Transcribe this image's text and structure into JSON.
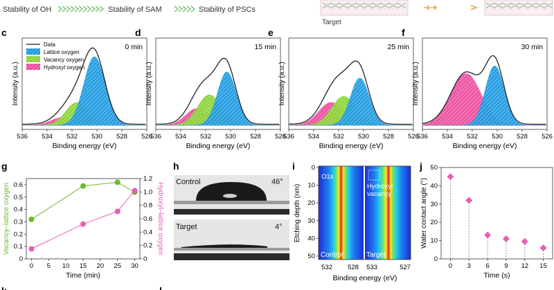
{
  "header": {
    "flow": [
      "Stability of OH",
      "Stability of SAM",
      "Stability of PSCs"
    ],
    "target_label": "Target"
  },
  "colors": {
    "lattice": "#1f9be0",
    "vacancy": "#8cd43a",
    "hydroxyl": "#ec4fa0",
    "data_line": "#222222",
    "background_line": "#e23a8a",
    "green_series": "#6cb82e",
    "pink_series": "#e85fb8",
    "flow_arrow": "#7cc57a",
    "target_arrow": "#f0a050"
  },
  "chart_data": [
    {
      "panel": "c",
      "type": "xps",
      "annotation": "0 min",
      "xlabel": "Binding energy (eV)",
      "ylabel": "Intensity (a.u.)",
      "xlim": [
        536,
        526
      ],
      "xticks": [
        536,
        534,
        532,
        530,
        528,
        526
      ],
      "legend": [
        "Data",
        "Lattice oxygen",
        "Vacancy oxygen",
        "Hydroxyl oxygen"
      ],
      "peaks": {
        "lattice": {
          "center": 530.2,
          "width": 0.85,
          "height": 0.9
        },
        "vacancy": {
          "center": 531.6,
          "width": 0.9,
          "height": 0.3
        },
        "hydroxyl": {
          "center": 532.8,
          "width": 0.9,
          "height": 0.1
        }
      }
    },
    {
      "panel": "d",
      "type": "xps",
      "annotation": "15 min",
      "xlabel": "Binding energy (eV)",
      "ylabel": "Intensity (a.u.)",
      "xlim": [
        536,
        526
      ],
      "xticks": [
        536,
        534,
        532,
        530,
        528,
        526
      ],
      "peaks": {
        "lattice": {
          "center": 530.3,
          "width": 0.75,
          "height": 0.7
        },
        "vacancy": {
          "center": 531.7,
          "width": 0.95,
          "height": 0.4
        },
        "hydroxyl": {
          "center": 532.7,
          "width": 0.9,
          "height": 0.22
        }
      }
    },
    {
      "panel": "e",
      "type": "xps",
      "annotation": "25 min",
      "xlabel": "Binding energy (eV)",
      "ylabel": "Intensity (a.u.)",
      "xlim": [
        536,
        526
      ],
      "xticks": [
        536,
        534,
        532,
        530,
        528,
        526
      ],
      "peaks": {
        "lattice": {
          "center": 530.3,
          "width": 0.75,
          "height": 0.62
        },
        "vacancy": {
          "center": 531.6,
          "width": 0.95,
          "height": 0.38
        },
        "hydroxyl": {
          "center": 532.6,
          "width": 1.0,
          "height": 0.3
        }
      }
    },
    {
      "panel": "f",
      "type": "xps",
      "annotation": "30 min",
      "xlabel": "Binding energy (eV)",
      "ylabel": "Intensity (a.u.)",
      "xlim": [
        536,
        526
      ],
      "xticks": [
        536,
        534,
        532,
        530,
        528,
        526
      ],
      "peaks": {
        "lattice": {
          "center": 530.2,
          "width": 0.75,
          "height": 0.78
        },
        "hydroxyl": {
          "center": 532.5,
          "width": 1.2,
          "height": 0.68
        }
      }
    },
    {
      "panel": "g",
      "type": "line",
      "xlabel": "Time (min)",
      "x": [
        0,
        15,
        25,
        30
      ],
      "xlim": [
        -1.5,
        31.5
      ],
      "xticks": [
        0,
        5,
        10,
        15,
        20,
        25,
        30
      ],
      "series": [
        {
          "name": "Vacancy–lattice oxygen",
          "axis": "left",
          "values": [
            0.32,
            0.59,
            0.62,
            0.54
          ],
          "ylim": [
            0,
            0.65
          ],
          "yticks": [
            "0",
            "0.1",
            "0.2",
            "0.3",
            "0.4",
            "0.5",
            "0.6"
          ]
        },
        {
          "name": "Hydroxyl–lattice oxygen",
          "axis": "right",
          "values": [
            0.15,
            0.52,
            0.71,
            1.02
          ],
          "ylim": [
            0,
            1.2
          ],
          "yticks": [
            "0",
            "0.2",
            "0.4",
            "0.6",
            "0.8",
            "1.0",
            "1.2"
          ]
        }
      ]
    },
    {
      "panel": "h",
      "type": "image",
      "samples": [
        {
          "label": "Control",
          "angle": "46°"
        },
        {
          "label": "Target",
          "angle": "4°"
        }
      ]
    },
    {
      "panel": "i",
      "type": "heatmap",
      "ylabel": "Etching depth (nm)",
      "xlabel": "Binding energy (eV)",
      "yticks": [
        "0",
        "10",
        "20",
        "30",
        "40",
        "50"
      ],
      "left": {
        "label": "Control",
        "tag": "O1s",
        "xticks": [
          "532",
          "528"
        ]
      },
      "right": {
        "label": "Target",
        "xticks": [
          "533",
          "527"
        ],
        "annotation": [
          "Hydroxyl",
          "vacancy"
        ]
      }
    },
    {
      "panel": "j",
      "type": "scatter",
      "xlabel": "Time (s)",
      "ylabel": "Water contact angle (°)",
      "x": [
        0,
        3,
        6,
        9,
        12,
        15
      ],
      "values": [
        45,
        32,
        13,
        11,
        9.5,
        6
      ],
      "xlim": [
        -1.5,
        16.5
      ],
      "ylim": [
        0,
        50
      ],
      "xticks": [
        "0",
        "3",
        "6",
        "9",
        "12",
        "15"
      ],
      "yticks": [
        "0",
        "10",
        "20",
        "30",
        "40",
        "50"
      ]
    }
  ]
}
